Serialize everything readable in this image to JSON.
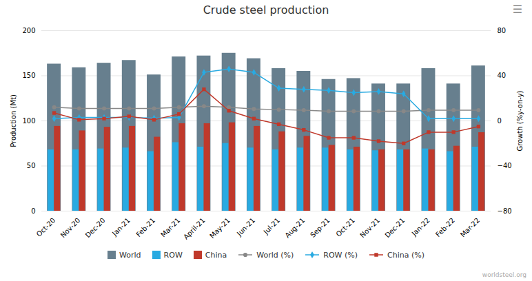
{
  "chart_data": {
    "type": "bar",
    "title": "Crude steel production",
    "categories": [
      "Oct-20",
      "Nov-20",
      "Dec-20",
      "Jan-21",
      "Feb-21",
      "Mar-21",
      "April-21",
      "May-21",
      "Jun-21",
      "Jul-21",
      "Aug-21",
      "Sep-21",
      "Oct-21",
      "Nov-21",
      "Dec-21",
      "Jan-22",
      "Feb-22",
      "Mar-22"
    ],
    "ylabel": "Production (Mt)",
    "y2label": "Growth (%y-on-y)",
    "ylim": [
      0,
      200
    ],
    "yticks": [
      0,
      50,
      100,
      150,
      200
    ],
    "y2lim": [
      -80,
      80
    ],
    "y2ticks": [
      -80,
      -40,
      0,
      40,
      80
    ],
    "grid": true,
    "legend": "bottom",
    "annotations": [
      "☰",
      "worldsteel.org"
    ],
    "series": [
      {
        "name": "World",
        "type": "bar",
        "color": "#677f8e",
        "values": [
          163,
          159,
          164,
          167,
          151,
          171,
          172,
          175,
          169,
          158,
          155,
          146,
          147,
          141,
          141,
          158,
          141,
          161
        ]
      },
      {
        "name": "ROW",
        "type": "bar",
        "color": "#29aae1",
        "values": [
          68,
          68,
          69,
          70,
          66,
          76,
          71,
          75,
          70,
          68,
          70,
          70,
          68,
          67,
          68,
          69,
          66,
          71
        ]
      },
      {
        "name": "China",
        "type": "bar",
        "color": "#c0392b",
        "values": [
          94,
          89,
          93,
          94,
          82,
          97,
          97,
          98,
          94,
          88,
          83,
          73,
          71,
          68,
          68,
          68,
          72,
          87
        ]
      },
      {
        "name": "World (%)",
        "type": "line",
        "axis": "y2",
        "color": "#888888",
        "marker": "circle",
        "values": [
          12,
          11,
          11,
          11,
          11,
          12,
          13,
          12,
          10.5,
          10,
          9.5,
          8.5,
          8.5,
          8.5,
          8.5,
          9.5,
          9.5,
          9.5
        ]
      },
      {
        "name": "ROW (%)",
        "type": "line",
        "axis": "y2",
        "color": "#29aae1",
        "marker": "diamond",
        "values": [
          2,
          3,
          3,
          3,
          2.5,
          3,
          43,
          46,
          43,
          29,
          28,
          27,
          25,
          26,
          24,
          2,
          2,
          2
        ]
      },
      {
        "name": "China (%)",
        "type": "line",
        "axis": "y2",
        "color": "#c0392b",
        "marker": "square",
        "values": [
          7,
          1,
          2,
          4,
          1,
          6,
          28,
          9,
          2,
          -3,
          -8,
          -15,
          -15,
          -18,
          -20,
          -10,
          -10,
          -5
        ]
      }
    ]
  }
}
